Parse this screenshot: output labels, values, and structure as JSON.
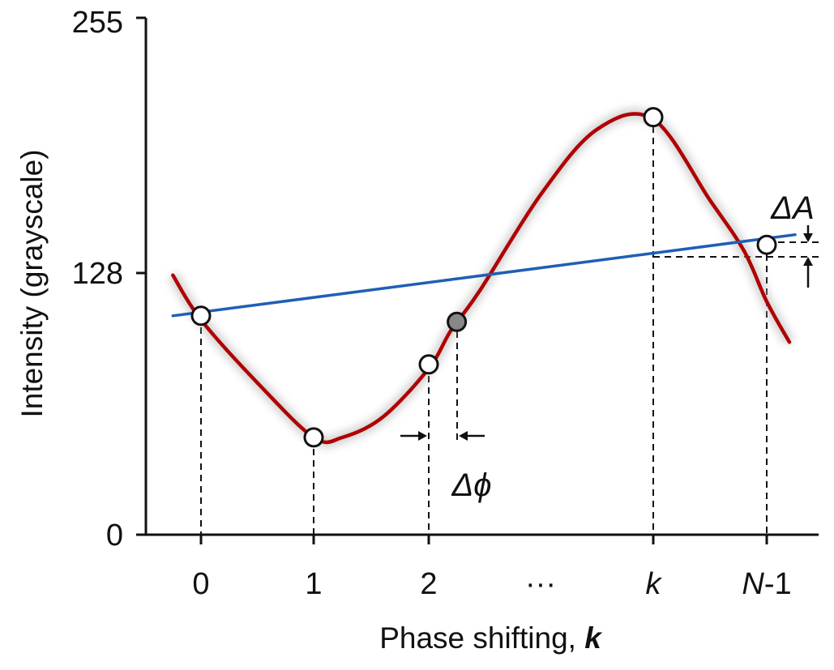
{
  "chart_data": {
    "type": "line",
    "ylabel": "Intensity (grayscale)",
    "xlabel_text": "Phase shifting, ",
    "xlabel_var": "k",
    "y_ticks": [
      "0",
      "128",
      "255"
    ],
    "x_tick_labels": [
      {
        "roman": "0",
        "italic": ""
      },
      {
        "roman": "1",
        "italic": ""
      },
      {
        "roman": "2",
        "italic": ""
      },
      {
        "roman": "···",
        "italic": ""
      },
      {
        "roman": "",
        "italic": "k"
      },
      {
        "roman": "-1",
        "italic": "N"
      }
    ],
    "ylim": [
      0,
      255
    ],
    "x_ticks": [
      0,
      1,
      2,
      4,
      5
    ],
    "xlim": [
      -0.3,
      5.3
    ],
    "series": [
      {
        "color": "#b00000",
        "x": [
          -0.25,
          0,
          0.5,
          1,
          1.25,
          1.6,
          2,
          2.2,
          2.45,
          3,
          3.5,
          4,
          4.5,
          4.8,
          5,
          5.2
        ],
        "y": [
          128,
          106,
          75,
          48,
          48,
          58,
          82,
          101,
          120,
          168,
          200,
          205,
          165,
          140,
          115,
          95
        ]
      },
      {
        "color": "#1f5fb5",
        "x": [
          -0.25,
          5.25
        ],
        "y": [
          108,
          148
        ]
      }
    ],
    "markers": [
      {
        "x": 0,
        "y": 108,
        "fill": "#ffffff"
      },
      {
        "x": 1,
        "y": 48,
        "fill": "#ffffff"
      },
      {
        "x": 2,
        "y": 84,
        "fill": "#ffffff"
      },
      {
        "x": 2.25,
        "y": 105,
        "fill": "#888888"
      },
      {
        "x": 4,
        "y": 206,
        "fill": "#ffffff"
      },
      {
        "x": 5,
        "y": 143,
        "fill": "#ffffff"
      }
    ],
    "annotations": {
      "delta_phi": "Δϕ",
      "delta_A": "ΔA"
    }
  }
}
